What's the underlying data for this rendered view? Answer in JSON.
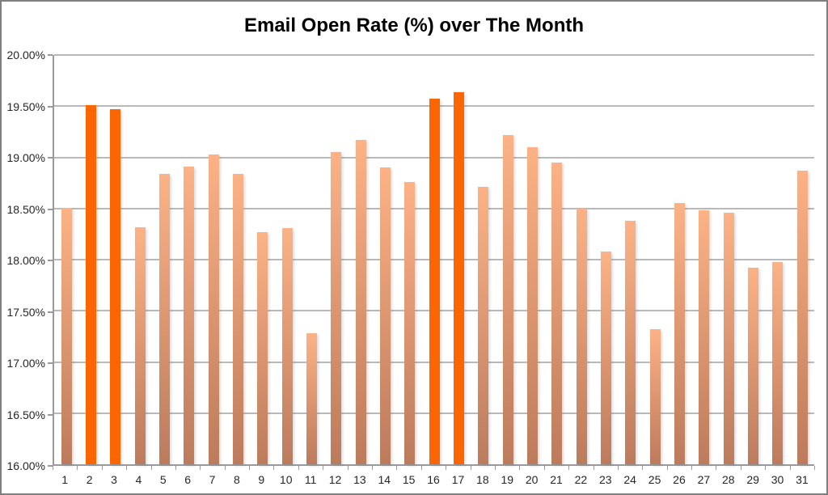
{
  "title": "Email Open Rate (%) over The Month",
  "chart_data": {
    "type": "bar",
    "title": "Email Open Rate (%) over The Month",
    "xlabel": "",
    "ylabel": "",
    "categories": [
      "1",
      "2",
      "3",
      "4",
      "5",
      "6",
      "7",
      "8",
      "9",
      "10",
      "11",
      "12",
      "13",
      "14",
      "15",
      "16",
      "17",
      "18",
      "19",
      "20",
      "21",
      "22",
      "23",
      "24",
      "25",
      "26",
      "27",
      "28",
      "29",
      "30",
      "31"
    ],
    "values": [
      18.51,
      19.51,
      19.47,
      18.32,
      18.84,
      18.91,
      19.03,
      18.84,
      18.27,
      18.31,
      17.28,
      19.05,
      19.17,
      18.9,
      18.76,
      19.57,
      19.64,
      18.71,
      19.22,
      19.1,
      18.95,
      18.5,
      18.08,
      18.38,
      17.32,
      18.55,
      18.48,
      18.46,
      17.92,
      17.98,
      18.87
    ],
    "highlighted_categories": [
      "2",
      "3",
      "16",
      "17"
    ],
    "ylim": [
      16.0,
      20.0
    ],
    "ytick_step": 0.5,
    "ytick_labels": [
      "20.00%",
      "19.50%",
      "19.00%",
      "18.50%",
      "18.00%",
      "17.50%",
      "17.00%",
      "16.50%",
      "16.00%"
    ],
    "grid": true,
    "legend": false,
    "colors": {
      "bar_gradient_top": "#FCB286",
      "bar_gradient_bottom": "#BC7B5C",
      "highlight": "#FB6602",
      "gridline": "#B9B9B9",
      "axis": "#9A9A9A",
      "label_text": "#262626",
      "title_text": "#000000"
    }
  }
}
